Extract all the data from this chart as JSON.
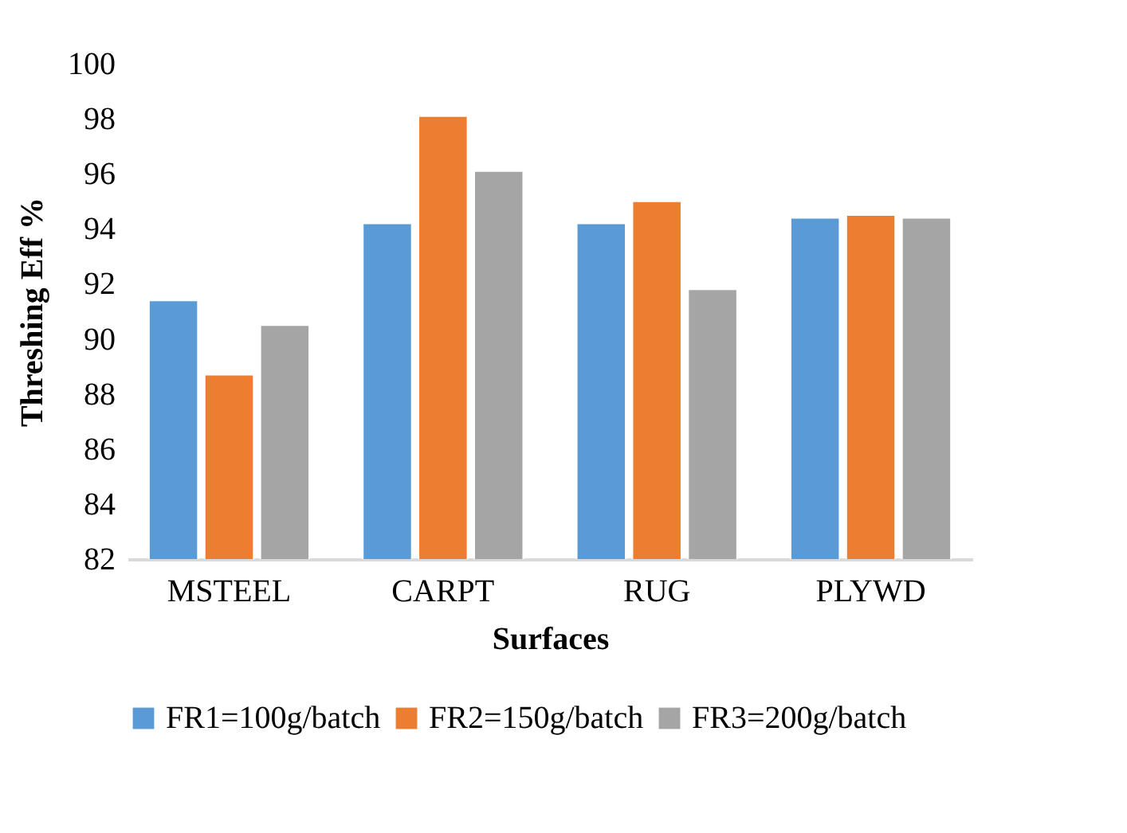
{
  "chart_data": {
    "type": "bar",
    "xlabel": "Surfaces",
    "ylabel": "Threshing Eff %",
    "categories": [
      "MSTEEL",
      "CARPT",
      "RUG",
      "PLYWD"
    ],
    "series": [
      {
        "name": "FR1=100g/batch",
        "color": "#5b9bd5",
        "values": [
          91.4,
          94.2,
          94.2,
          94.4
        ]
      },
      {
        "name": "FR2=150g/batch",
        "color": "#ed7d31",
        "values": [
          88.7,
          98.1,
          95.0,
          94.5
        ]
      },
      {
        "name": "FR3=200g/batch",
        "color": "#a5a5a5",
        "values": [
          90.5,
          96.1,
          91.8,
          94.4
        ]
      }
    ],
    "ylim": [
      82,
      100
    ],
    "yticks": [
      82,
      84,
      86,
      88,
      90,
      92,
      94,
      96,
      98,
      100
    ],
    "grid": false,
    "legend": "bottom"
  }
}
